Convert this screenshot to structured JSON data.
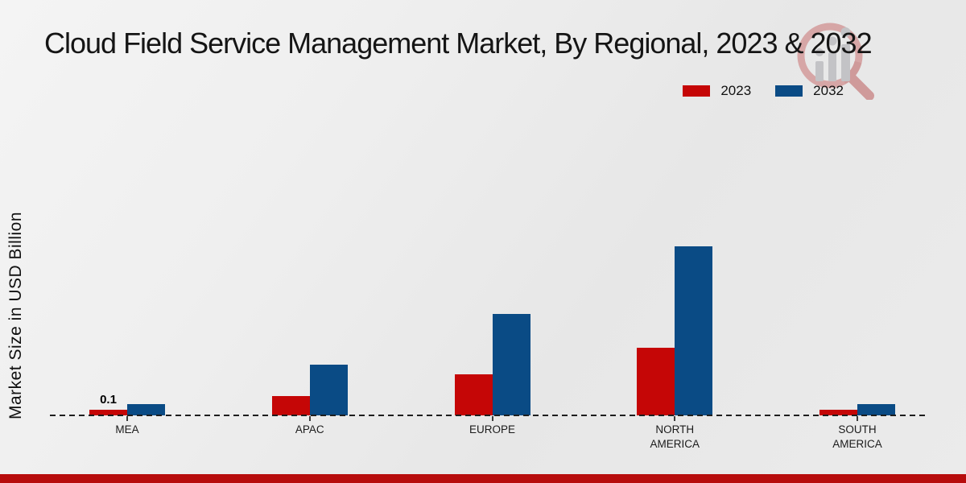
{
  "chart_data": {
    "type": "bar",
    "title": "Cloud Field Service Management Market, By Regional, 2023 & 2032",
    "ylabel": "Market Size in USD Billion",
    "xlabel": "",
    "categories": [
      "MEA",
      "APAC",
      "EUROPE",
      "NORTH AMERICA",
      "SOUTH AMERICA"
    ],
    "series": [
      {
        "name": "2023",
        "color": "#c50606",
        "values": [
          0.1,
          0.35,
          0.73,
          1.2,
          0.1
        ]
      },
      {
        "name": "2032",
        "color": "#0a4b85",
        "values": [
          0.2,
          0.9,
          1.8,
          3.0,
          0.2
        ]
      }
    ],
    "bar_labels": [
      {
        "category": "MEA",
        "series": "2023",
        "text": "0.1"
      }
    ],
    "ylim": [
      0,
      3.2
    ],
    "grid": false,
    "legend_position": "top-right",
    "baseline_style": "dashed"
  },
  "footer": {
    "color": "#b70c0c"
  },
  "watermark": {
    "name": "magnifier-bar-chart-logo",
    "ring_color": "#d6a6a6",
    "handle_color": "#cf9a9a",
    "bar_color": "#c3c3c6"
  }
}
